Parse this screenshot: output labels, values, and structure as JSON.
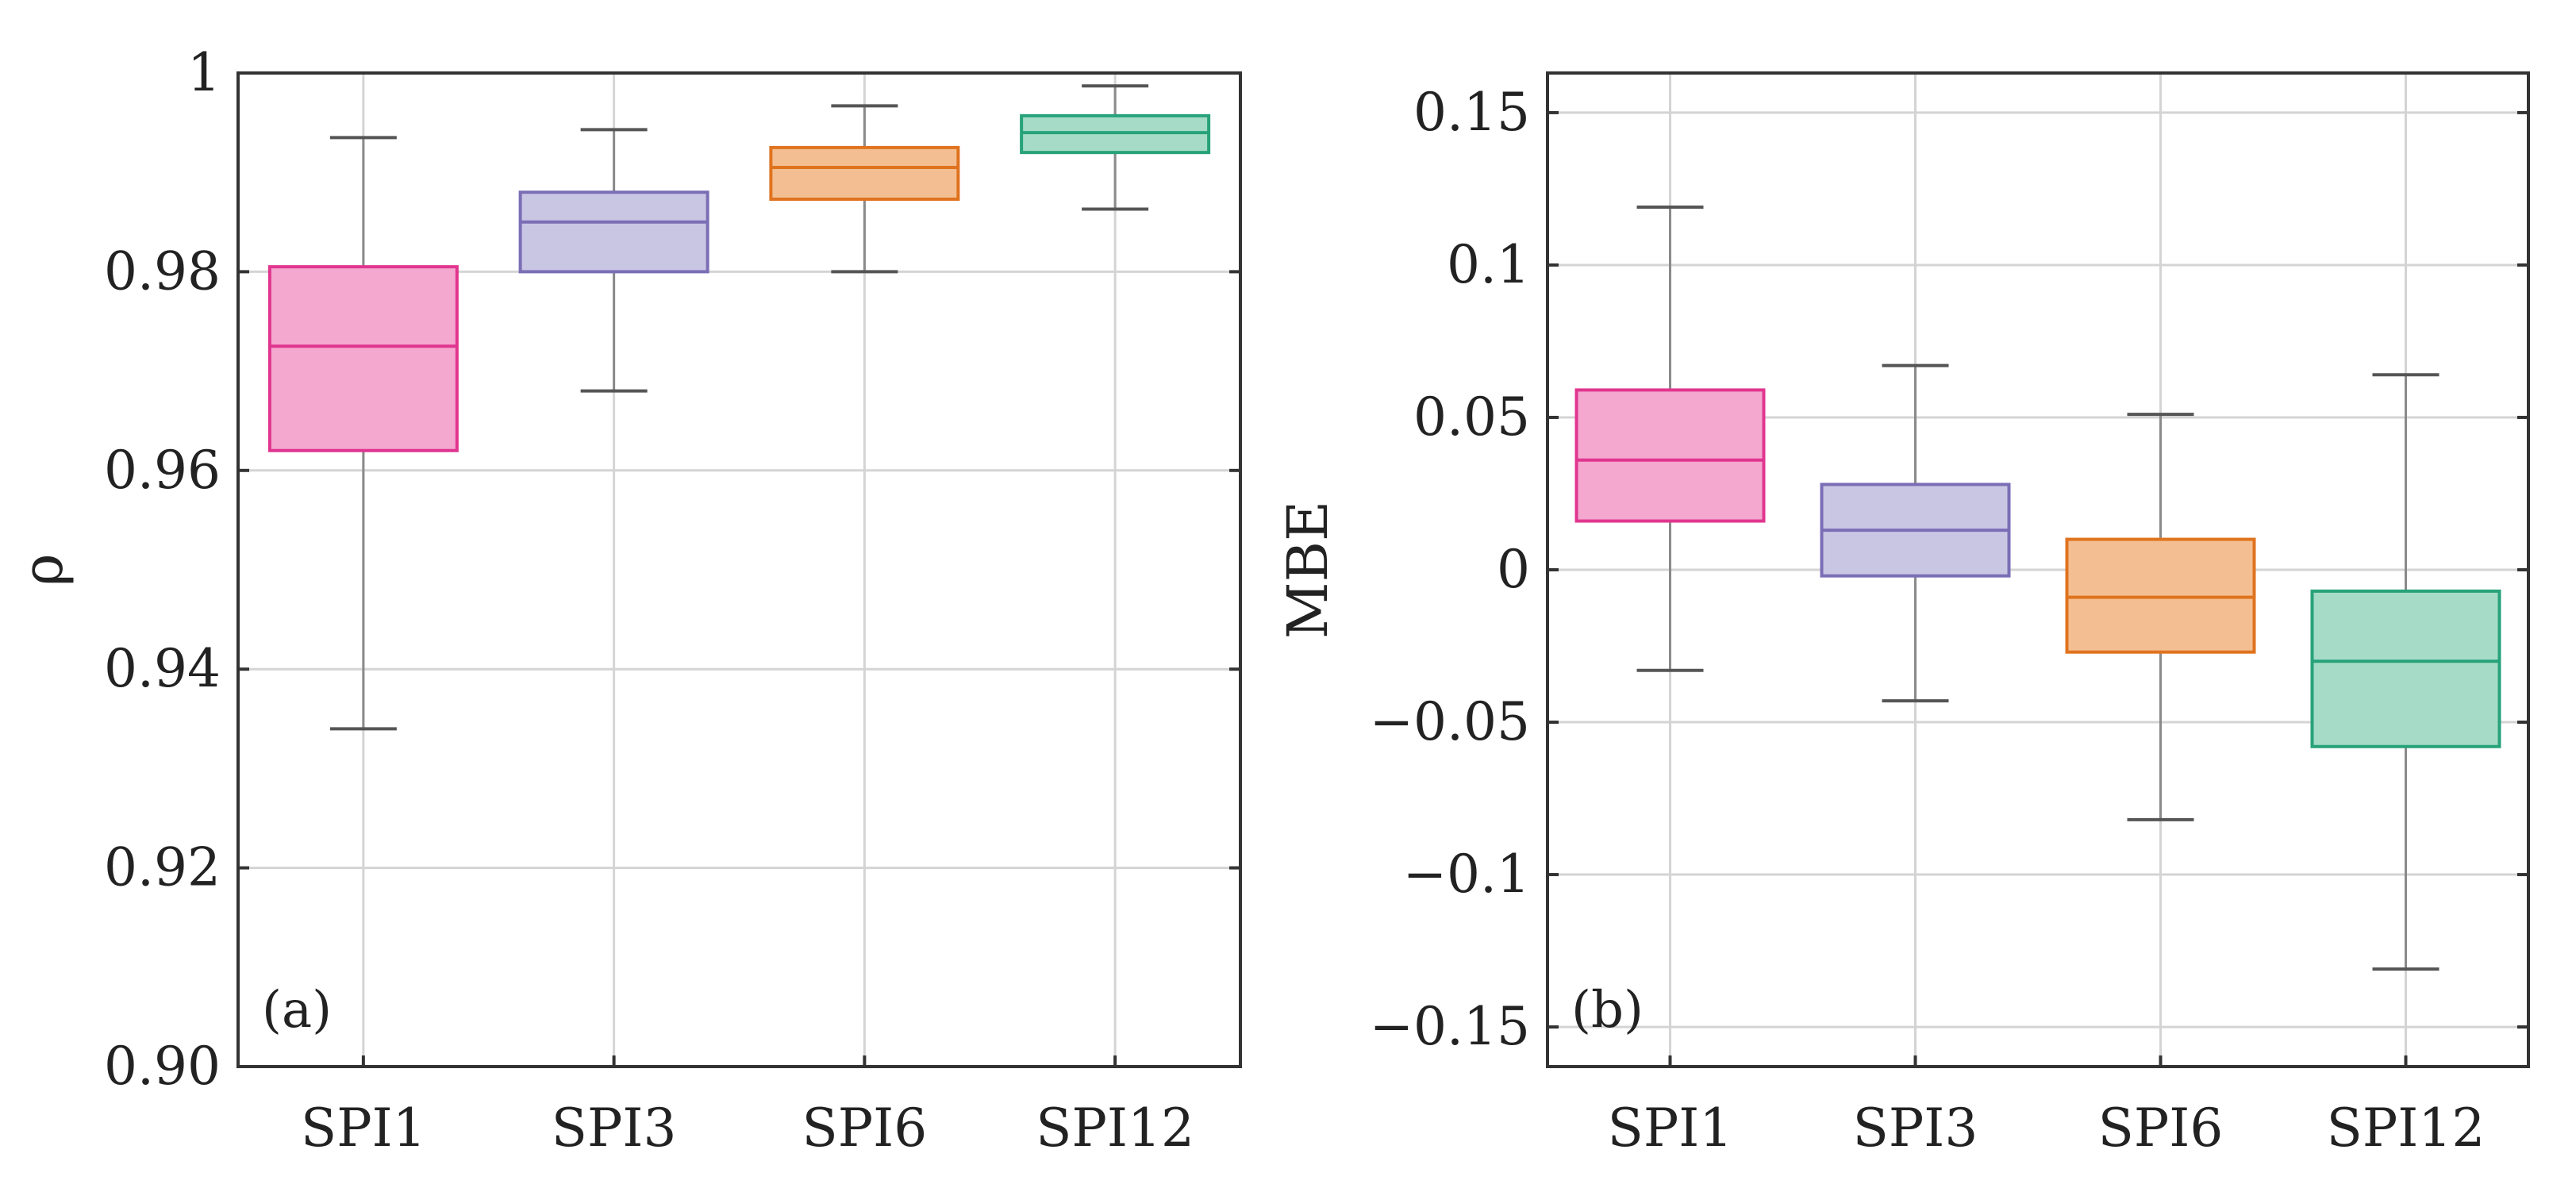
{
  "chart_data": [
    {
      "type": "box",
      "panel_label": "(a)",
      "ylabel": "ρ",
      "xlabel": "",
      "categories": [
        "SPI1",
        "SPI3",
        "SPI6",
        "SPI12"
      ],
      "ylim": [
        0.9,
        1.0
      ],
      "yticks": [
        0.9,
        0.92,
        0.94,
        0.96,
        0.98,
        1.0
      ],
      "ytick_labels": [
        "0.90",
        "0.92",
        "0.94",
        "0.96",
        "0.98",
        "1"
      ],
      "grid": true,
      "boxes": [
        {
          "category": "SPI1",
          "whisker_low": 0.934,
          "q1": 0.962,
          "median": 0.9725,
          "q3": 0.9805,
          "whisker_high": 0.9935
        },
        {
          "category": "SPI3",
          "whisker_low": 0.968,
          "q1": 0.98,
          "median": 0.985,
          "q3": 0.988,
          "whisker_high": 0.9943
        },
        {
          "category": "SPI6",
          "whisker_low": 0.98,
          "q1": 0.9873,
          "median": 0.9905,
          "q3": 0.9925,
          "whisker_high": 0.9967
        },
        {
          "category": "SPI12",
          "whisker_low": 0.9863,
          "q1": 0.992,
          "median": 0.994,
          "q3": 0.9957,
          "whisker_high": 0.9987
        }
      ],
      "colors": {
        "SPI1": {
          "fill": "#f4a7cf",
          "stroke": "#e0368f"
        },
        "SPI3": {
          "fill": "#c9c6e3",
          "stroke": "#7b6eb6"
        },
        "SPI6": {
          "fill": "#f3bf92",
          "stroke": "#e0731f"
        },
        "SPI12": {
          "fill": "#a6dcc7",
          "stroke": "#27a27a"
        }
      }
    },
    {
      "type": "box",
      "panel_label": "(b)",
      "ylabel": "MBE",
      "xlabel": "",
      "categories": [
        "SPI1",
        "SPI3",
        "SPI6",
        "SPI12"
      ],
      "ylim": [
        -0.163,
        0.163
      ],
      "yticks": [
        0.15,
        0.1,
        0.05,
        0,
        -0.05,
        -0.1,
        -0.15
      ],
      "ytick_labels": [
        "0.15",
        "0.1",
        "0.05",
        "0",
        "−0.05",
        "−0.1",
        "−0.15"
      ],
      "grid": true,
      "boxes": [
        {
          "category": "SPI1",
          "whisker_low": -0.033,
          "q1": 0.016,
          "median": 0.036,
          "q3": 0.059,
          "whisker_high": 0.119
        },
        {
          "category": "SPI3",
          "whisker_low": -0.043,
          "q1": -0.002,
          "median": 0.013,
          "q3": 0.028,
          "whisker_high": 0.067
        },
        {
          "category": "SPI6",
          "whisker_low": -0.082,
          "q1": -0.027,
          "median": -0.009,
          "q3": 0.01,
          "whisker_high": 0.051
        },
        {
          "category": "SPI12",
          "whisker_low": -0.131,
          "q1": -0.058,
          "median": -0.03,
          "q3": -0.007,
          "whisker_high": 0.064
        }
      ],
      "colors": {
        "SPI1": {
          "fill": "#f4a7cf",
          "stroke": "#e0368f"
        },
        "SPI3": {
          "fill": "#c9c6e3",
          "stroke": "#7b6eb6"
        },
        "SPI6": {
          "fill": "#f3bf92",
          "stroke": "#e0731f"
        },
        "SPI12": {
          "fill": "#a6dcc7",
          "stroke": "#27a27a"
        }
      }
    }
  ]
}
